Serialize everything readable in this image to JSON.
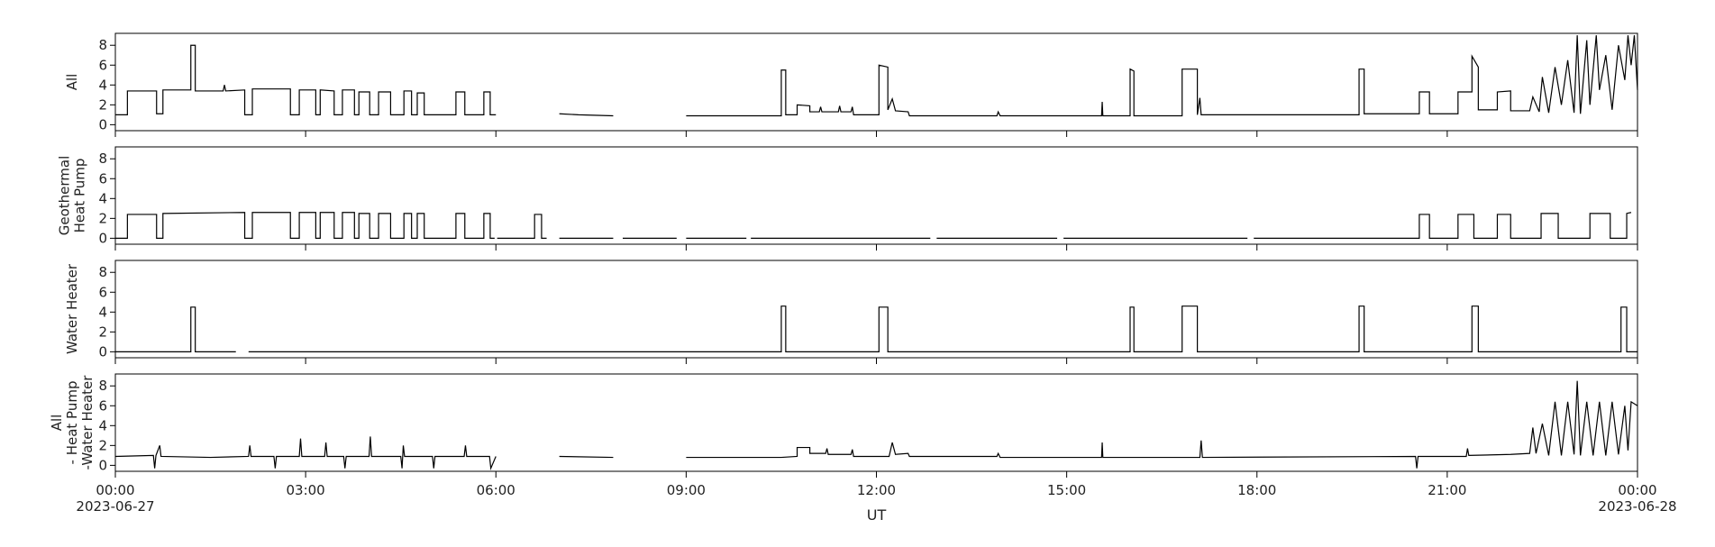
{
  "chart_data": [
    {
      "type": "line",
      "ylabel": [
        "All"
      ],
      "xlim": [
        0,
        24
      ],
      "xticks": [
        0,
        3,
        6,
        9,
        12,
        15,
        18,
        21,
        24
      ],
      "ylim": [
        -0.6,
        9.2
      ],
      "yticks": [
        0,
        2,
        4,
        6,
        8
      ],
      "color": "#000000",
      "x": [
        0,
        0.19,
        0.19,
        0.65,
        0.65,
        0.75,
        0.75,
        1.19,
        1.19,
        1.26,
        1.26,
        1.7,
        1.72,
        1.74,
        2.04,
        2.04,
        2.16,
        2.16,
        2.76,
        2.76,
        2.9,
        2.9,
        3.16,
        3.16,
        3.23,
        3.23,
        3.45,
        3.45,
        3.58,
        3.58,
        3.77,
        3.77,
        3.84,
        3.84,
        4.01,
        4.01,
        4.15,
        4.15,
        4.34,
        4.34,
        4.55,
        4.55,
        4.67,
        4.67,
        4.76,
        4.76,
        4.87,
        4.87,
        5.37,
        5.37,
        5.51,
        5.51,
        5.81,
        5.81,
        5.91,
        5.91,
        6.0,
        6.02,
        7.0,
        7.3,
        7.85,
        7.9,
        9.0,
        10.5,
        10.5,
        10.57,
        10.57,
        10.75,
        10.75,
        10.95,
        10.95,
        11.1,
        11.12,
        11.14,
        11.4,
        11.42,
        11.44,
        11.6,
        11.62,
        11.64,
        12.04,
        12.04,
        12.18,
        12.18,
        12.25,
        12.3,
        12.5,
        12.52,
        13.9,
        13.92,
        13.95,
        15.55,
        15.56,
        15.57,
        16.0,
        16.0,
        16.06,
        16.06,
        16.82,
        16.82,
        17.06,
        17.06,
        17.1,
        17.12,
        19.61,
        19.61,
        19.69,
        19.69,
        20.56,
        20.56,
        20.72,
        20.72,
        21.17,
        21.17,
        21.39,
        21.39,
        21.49,
        21.49,
        21.79,
        21.79,
        22.0,
        22.0,
        22.3,
        22.35,
        22.45,
        22.5,
        22.6,
        22.7,
        22.8,
        22.9,
        23.0,
        23.05,
        23.1,
        23.2,
        23.25,
        23.35,
        23.4,
        23.5,
        23.6,
        23.7,
        23.8,
        23.85,
        23.9,
        23.95,
        24
      ],
      "values": [
        1.0,
        1.0,
        3.4,
        3.4,
        1.1,
        1.1,
        3.5,
        3.5,
        8,
        8,
        3.4,
        3.4,
        4.0,
        3.4,
        3.5,
        1.0,
        1.0,
        3.6,
        3.6,
        1.0,
        1.0,
        3.5,
        3.5,
        1.0,
        1.0,
        3.5,
        3.4,
        1.0,
        1.0,
        3.5,
        3.5,
        1.0,
        1.0,
        3.3,
        3.3,
        1.0,
        1.0,
        3.3,
        3.3,
        1.0,
        1.0,
        3.4,
        3.4,
        1.0,
        1.0,
        3.2,
        3.2,
        1.0,
        1.0,
        3.3,
        3.3,
        1.0,
        1.0,
        3.3,
        3.3,
        1.0,
        1.0,
        null,
        1.1,
        1.0,
        0.9,
        null,
        0.9,
        0.9,
        5.5,
        5.5,
        1.0,
        1.0,
        2.0,
        1.9,
        1.3,
        1.3,
        1.8,
        1.3,
        1.3,
        1.9,
        1.3,
        1.3,
        1.8,
        1.0,
        1.0,
        6.0,
        5.8,
        1.5,
        2.6,
        1.4,
        1.3,
        0.9,
        0.9,
        1.3,
        0.9,
        0.9,
        2.3,
        0.9,
        0.9,
        5.6,
        5.4,
        0.9,
        0.9,
        5.6,
        5.6,
        1.0,
        2.7,
        1.0,
        1.0,
        5.6,
        5.6,
        1.1,
        1.1,
        3.3,
        3.3,
        1.1,
        1.1,
        3.3,
        3.3,
        6.9,
        5.8,
        1.5,
        1.5,
        3.3,
        3.4,
        1.4,
        1.4,
        2.8,
        1.3,
        4.8,
        1.2,
        5.8,
        2.0,
        6.5,
        1.2,
        9.0,
        1.1,
        8.5,
        2.0,
        9.0,
        3.5,
        7.0,
        1.5,
        8.0,
        4.5,
        9.0,
        6.0,
        9.0,
        3.5
      ]
    },
    {
      "type": "line",
      "ylabel": [
        "Geothermal",
        "Heat Pump"
      ],
      "xlim": [
        0,
        24
      ],
      "xticks": [
        0,
        3,
        6,
        9,
        12,
        15,
        18,
        21,
        24
      ],
      "ylim": [
        -0.6,
        9.2
      ],
      "yticks": [
        0,
        2,
        4,
        6,
        8
      ],
      "color": "#000000",
      "x": [
        0,
        0.19,
        0.19,
        0.65,
        0.65,
        0.75,
        0.75,
        2.04,
        2.04,
        2.16,
        2.16,
        2.76,
        2.76,
        2.9,
        2.9,
        3.16,
        3.16,
        3.23,
        3.23,
        3.45,
        3.45,
        3.58,
        3.58,
        3.77,
        3.77,
        3.84,
        3.84,
        4.01,
        4.01,
        4.15,
        4.15,
        4.34,
        4.34,
        4.55,
        4.55,
        4.67,
        4.67,
        4.76,
        4.76,
        4.87,
        4.87,
        5.37,
        5.37,
        5.51,
        5.51,
        5.81,
        5.81,
        5.91,
        5.91,
        5.98,
        6.0,
        6.02,
        6.61,
        6.61,
        6.72,
        6.72,
        6.8,
        6.9,
        7.0,
        7.85,
        7.9,
        8.0,
        8.85,
        8.9,
        9.0,
        9.95,
        9.98,
        10.02,
        12.85,
        12.9,
        12.95,
        14.85,
        14.9,
        14.95,
        17.85,
        17.9,
        17.95,
        20.56,
        20.56,
        20.72,
        20.72,
        21.17,
        21.17,
        21.42,
        21.42,
        21.79,
        21.79,
        22.0,
        22.0,
        22.48,
        22.48,
        22.75,
        22.75,
        23.25,
        23.25,
        23.57,
        23.57,
        23.83,
        23.83,
        23.9
      ],
      "values": [
        0,
        0,
        2.4,
        2.4,
        0,
        0,
        2.5,
        2.6,
        0,
        0,
        2.6,
        2.6,
        0,
        0,
        2.6,
        2.6,
        0,
        0,
        2.6,
        2.6,
        0,
        0,
        2.6,
        2.6,
        0,
        0,
        2.5,
        2.5,
        0,
        0,
        2.5,
        2.5,
        0,
        0,
        2.5,
        2.5,
        0,
        0,
        2.5,
        2.5,
        0,
        0,
        2.5,
        2.5,
        0,
        0,
        2.5,
        2.5,
        0,
        0,
        null,
        0,
        0,
        2.4,
        2.4,
        0,
        0,
        null,
        0,
        0,
        null,
        0,
        0,
        null,
        0,
        0,
        null,
        0,
        0,
        null,
        0,
        0,
        null,
        0,
        0,
        null,
        0,
        0,
        2.4,
        2.4,
        0,
        0,
        2.4,
        2.4,
        0,
        0,
        2.4,
        2.4,
        0,
        0,
        2.5,
        2.5,
        0,
        0,
        2.5,
        2.5,
        0,
        0,
        2.5,
        2.6
      ]
    },
    {
      "type": "line",
      "ylabel": [
        "Water Heater"
      ],
      "xlim": [
        0,
        24
      ],
      "xticks": [
        0,
        3,
        6,
        9,
        12,
        15,
        18,
        21,
        24
      ],
      "ylim": [
        -0.6,
        9.2
      ],
      "yticks": [
        0,
        2,
        4,
        6,
        8
      ],
      "color": "#000000",
      "x": [
        0,
        1.19,
        1.19,
        1.26,
        1.26,
        1.9,
        1.9,
        2.1,
        2.1,
        10.5,
        10.5,
        10.57,
        10.57,
        12.04,
        12.04,
        12.18,
        12.18,
        16.0,
        16.0,
        16.06,
        16.06,
        16.82,
        16.82,
        17.06,
        17.06,
        19.61,
        19.61,
        19.69,
        19.69,
        21.39,
        21.39,
        21.49,
        21.49,
        23.74,
        23.74,
        23.83,
        23.83,
        24
      ],
      "values": [
        0,
        0,
        4.5,
        4.5,
        0,
        0,
        null,
        0,
        0,
        0,
        4.6,
        4.6,
        0,
        0,
        4.5,
        4.5,
        0,
        0,
        4.5,
        4.5,
        0,
        0,
        4.6,
        4.6,
        0,
        0,
        4.6,
        4.6,
        0,
        0,
        4.6,
        4.6,
        0,
        0,
        4.5,
        4.5,
        0,
        0
      ]
    },
    {
      "type": "line",
      "ylabel": [
        "All",
        "- Heat Pump",
        "-Water Heater"
      ],
      "xlim": [
        0,
        24
      ],
      "xticks": [
        {
          "value": 0,
          "label": "00:00"
        },
        {
          "value": 3,
          "label": "03:00"
        },
        {
          "value": 6,
          "label": "06:00"
        },
        {
          "value": 9,
          "label": "09:00"
        },
        {
          "value": 12,
          "label": "12:00"
        },
        {
          "value": 15,
          "label": "15:00"
        },
        {
          "value": 18,
          "label": "18:00"
        },
        {
          "value": 21,
          "label": "21:00"
        },
        {
          "value": 24,
          "label": "00:00"
        }
      ],
      "xtick_dates": [
        {
          "value": 0,
          "label": "2023-06-27"
        },
        {
          "value": 24,
          "label": "2023-06-28"
        }
      ],
      "xlabel": "UT",
      "ylim": [
        -0.6,
        9.2
      ],
      "yticks": [
        0,
        2,
        4,
        6,
        8
      ],
      "color": "#000000",
      "x": [
        0,
        0.6,
        0.62,
        0.64,
        0.7,
        0.72,
        1.5,
        2.1,
        2.12,
        2.14,
        2.5,
        2.52,
        2.54,
        2.9,
        2.92,
        2.94,
        3.3,
        3.32,
        3.34,
        3.6,
        3.62,
        3.64,
        4.0,
        4.02,
        4.04,
        4.5,
        4.52,
        4.54,
        4.56,
        5.0,
        5.02,
        5.04,
        5.5,
        5.52,
        5.54,
        5.9,
        5.92,
        6.0,
        6.02,
        7.0,
        7.85,
        7.9,
        9.0,
        10.5,
        10.75,
        10.75,
        10.95,
        10.95,
        11.2,
        11.22,
        11.24,
        11.6,
        11.62,
        11.64,
        12.2,
        12.25,
        12.3,
        12.5,
        12.52,
        13.9,
        13.92,
        13.95,
        15.55,
        15.56,
        15.57,
        17.1,
        17.12,
        17.14,
        20.5,
        20.52,
        20.54,
        21.3,
        21.32,
        21.34,
        22.0,
        22.3,
        22.35,
        22.4,
        22.5,
        22.6,
        22.7,
        22.8,
        22.9,
        23.0,
        23.05,
        23.1,
        23.2,
        23.3,
        23.4,
        23.5,
        23.6,
        23.7,
        23.8,
        23.85,
        23.9,
        24
      ],
      "values": [
        0.9,
        1.0,
        -0.3,
        1.0,
        2.0,
        0.9,
        0.8,
        0.9,
        2.0,
        0.9,
        0.9,
        -0.3,
        0.9,
        0.9,
        2.7,
        0.9,
        0.9,
        2.3,
        0.9,
        0.9,
        -0.3,
        0.9,
        0.9,
        2.9,
        0.9,
        0.9,
        -0.3,
        2.0,
        0.9,
        0.9,
        -0.3,
        0.9,
        0.9,
        2.0,
        0.9,
        0.9,
        -0.3,
        0.9,
        null,
        0.9,
        0.8,
        null,
        0.8,
        0.8,
        0.9,
        1.8,
        1.8,
        1.2,
        1.2,
        1.7,
        1.1,
        1.1,
        1.6,
        0.9,
        0.9,
        2.3,
        1.1,
        1.2,
        0.9,
        0.9,
        1.2,
        0.8,
        0.8,
        2.3,
        0.8,
        0.8,
        2.5,
        0.8,
        0.9,
        -0.3,
        0.9,
        0.9,
        1.7,
        1.0,
        1.1,
        1.2,
        3.8,
        1.2,
        4.2,
        1.0,
        6.4,
        1.0,
        6.4,
        1.1,
        8.5,
        1.0,
        6.4,
        1.0,
        6.4,
        1.0,
        6.4,
        1.1,
        6.0,
        1.5,
        6.4,
        6.0
      ]
    }
  ]
}
